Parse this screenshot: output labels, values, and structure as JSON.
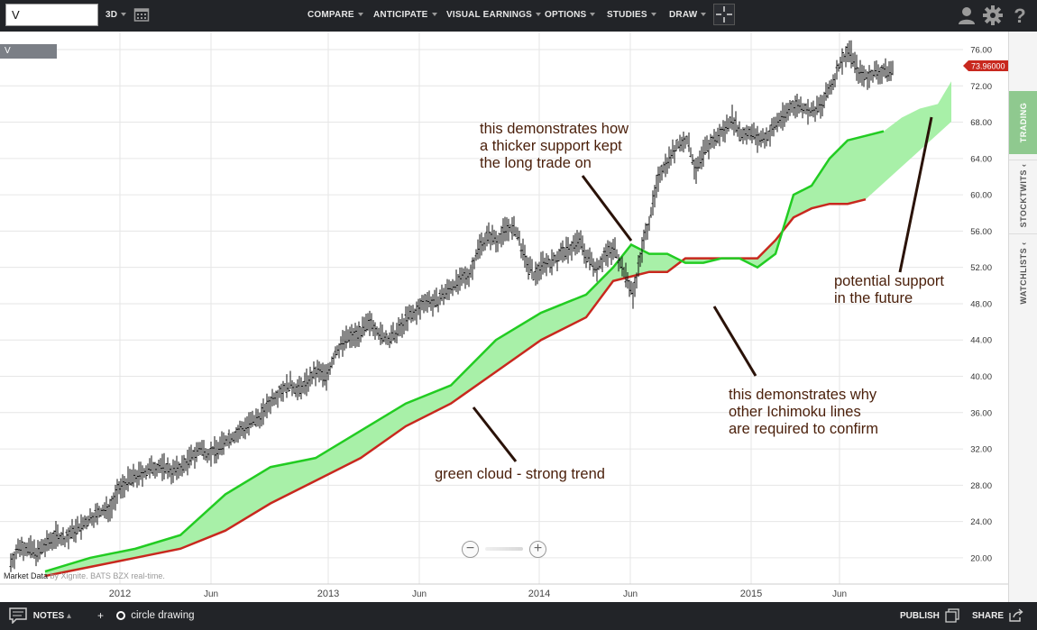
{
  "toolbar": {
    "symbol_value": "V",
    "range_label": "3D",
    "menu": [
      {
        "label": "COMPARE"
      },
      {
        "label": "ANTICIPATE"
      },
      {
        "label": "VISUAL EARNINGS"
      },
      {
        "label": "OPTIONS"
      },
      {
        "label": "STUDIES"
      },
      {
        "label": "DRAW"
      }
    ],
    "icons": [
      "calendar-icon",
      "crosshair-icon",
      "user-icon",
      "gear-icon",
      "help-icon"
    ]
  },
  "chart": {
    "symbol_tag": "V",
    "last_price": "73.96000",
    "y_ticks": [
      "76.00",
      "72.00",
      "68.00",
      "64.00",
      "60.00",
      "56.00",
      "52.00",
      "48.00",
      "44.00",
      "40.00",
      "36.00",
      "32.00",
      "28.00",
      "24.00",
      "20.00"
    ],
    "x_ticks": [
      "2012",
      "Jun",
      "2013",
      "Jun",
      "2014",
      "Jun",
      "2015",
      "Jun"
    ],
    "market_data": "Market Data",
    "market_data_suffix": "by Xignite. BATS BZX real-time.",
    "annotations": {
      "thick_support": "this demonstrates how\na thicker support kept\nthe long trade on",
      "green_cloud": "green cloud - strong trend",
      "other_lines": "this demonstrates why\nother Ichimoku lines\nare required to confirm",
      "future_support": "potential support\nin the future"
    },
    "colors": {
      "cloud_fill": "#a8f0a8",
      "span_a": "#22cc22",
      "span_b": "#c8281e",
      "price": "#111111",
      "annotation": "#4a1f0a",
      "price_tag": "#c8281e"
    }
  },
  "chart_data": {
    "type": "candlestick",
    "x_ticks": [
      "2012",
      "Jun",
      "2013",
      "Jun",
      "2014",
      "Jun",
      "2015",
      "Jun"
    ],
    "ylim": [
      18,
      78
    ],
    "price": {
      "x": [
        0,
        10,
        20,
        30,
        40,
        50,
        60,
        70,
        80,
        90,
        100,
        110,
        120,
        130,
        140,
        150,
        160,
        170,
        180,
        190,
        200,
        210,
        220,
        230,
        240,
        250,
        260,
        270,
        280,
        290,
        300,
        310,
        320,
        330,
        340,
        350,
        360,
        370,
        380,
        390,
        400,
        410,
        420,
        430,
        440,
        450,
        460,
        470,
        480,
        490,
        500,
        510,
        520,
        530,
        540,
        550,
        560,
        570,
        580,
        590,
        600,
        610,
        620,
        630,
        640,
        650,
        660,
        670,
        680,
        690,
        700,
        710,
        720,
        730,
        740,
        750,
        760,
        770,
        780,
        790,
        800,
        810,
        820,
        830,
        840,
        850,
        860,
        870,
        880,
        890,
        900,
        910,
        920,
        930,
        940,
        950,
        960,
        970,
        980
      ],
      "close": [
        19.5,
        21.3,
        21.0,
        20.5,
        21.5,
        22.5,
        22.0,
        23.0,
        23.5,
        24.5,
        25.0,
        25.5,
        27.5,
        28.5,
        29.0,
        29.5,
        30.0,
        30.0,
        29.5,
        30.0,
        31.0,
        32.0,
        31.5,
        32.0,
        33.0,
        33.5,
        34.5,
        35.0,
        36.0,
        37.5,
        38.5,
        39.0,
        38.5,
        39.5,
        40.5,
        40.0,
        42.5,
        44.0,
        44.5,
        45.0,
        46.0,
        44.5,
        44.0,
        45.0,
        46.5,
        47.0,
        48.5,
        48.0,
        49.0,
        50.0,
        50.5,
        51.5,
        54.5,
        55.5,
        55.0,
        56.5,
        56.0,
        53.0,
        51.0,
        52.5,
        52.5,
        53.5,
        54.0,
        55.0,
        53.0,
        52.0,
        53.5,
        54.0,
        51.5,
        49.0,
        54.0,
        58.0,
        62.5,
        64.0,
        65.5,
        66.0,
        62.5,
        65.0,
        66.0,
        67.0,
        68.5,
        66.5,
        67.0,
        66.0,
        66.5,
        68.0,
        69.0,
        70.0,
        69.5,
        69.0,
        70.0,
        72.0,
        74.5,
        76.0,
        73.5,
        73.0,
        73.5,
        73.5,
        73.9
      ]
    },
    "cloud": {
      "x": [
        50,
        100,
        150,
        200,
        250,
        300,
        350,
        400,
        450,
        500,
        550,
        600,
        650,
        680,
        700,
        720,
        740,
        760,
        780,
        800,
        820,
        840,
        860,
        880,
        900,
        920,
        940,
        960,
        980,
        1000,
        1020,
        1040,
        1055
      ],
      "span_a": [
        18.5,
        20.0,
        21.0,
        22.5,
        27.0,
        30.0,
        31.0,
        34.0,
        37.0,
        39.0,
        44.0,
        47.0,
        49.0,
        52.0,
        54.5,
        53.5,
        53.5,
        52.5,
        52.5,
        53.0,
        53.0,
        52.0,
        53.5,
        60.0,
        61.0,
        64.0,
        66.0,
        66.5,
        67.0,
        68.5,
        69.5,
        70.0,
        72.5
      ],
      "span_b": [
        18.0,
        19.0,
        20.0,
        21.0,
        23.0,
        26.0,
        28.5,
        31.0,
        34.5,
        37.0,
        40.5,
        44.0,
        46.5,
        50.5,
        51.0,
        51.5,
        51.5,
        53.0,
        53.0,
        53.0,
        53.0,
        53.0,
        55.0,
        57.5,
        58.5,
        59.0,
        59.0,
        59.5,
        null,
        null,
        null,
        null,
        null
      ]
    }
  }
}
